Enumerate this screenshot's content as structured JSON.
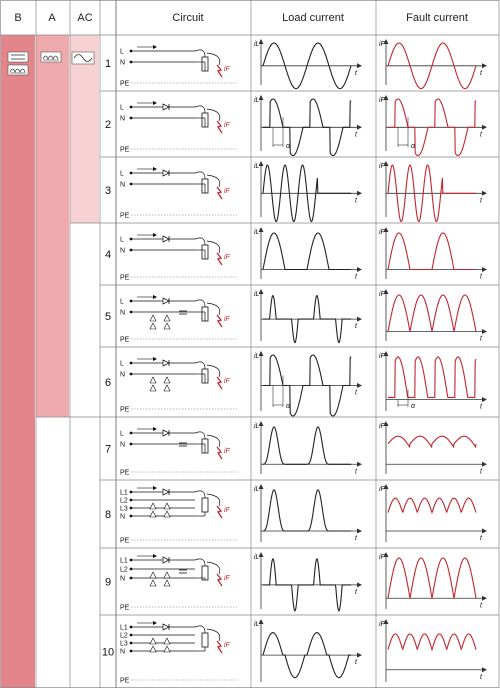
{
  "header": {
    "col_b": "B",
    "col_a": "A",
    "col_ac": "AC",
    "col_circuit": "Circuit",
    "col_load": "Load current",
    "col_fault": "Fault current"
  },
  "axis": {
    "load_y": "iL",
    "fault_y": "iF",
    "x": "t",
    "phase": "α"
  },
  "colors": {
    "type_b": "#e3858b",
    "type_a": "#eeaaad",
    "type_ac": "#f6d2d4",
    "fault_wave": "#c2262e",
    "wave": "#222222",
    "grid": "#888888"
  },
  "icons": {
    "b": [
      "dc-smooth-icon",
      "pulsed-dc-icon"
    ],
    "a": "pulsed-dc-icon",
    "ac": "ac-sine-icon"
  },
  "rows": [
    {
      "num": "1",
      "lines": [
        "L",
        "N",
        "PE"
      ],
      "circuit": "resistive load",
      "load": "sine",
      "fault": "sine"
    },
    {
      "num": "2",
      "lines": [
        "L",
        "N",
        "PE"
      ],
      "circuit": "phase-angle control",
      "load": "phase-cut",
      "fault": "phase-cut",
      "alpha": true
    },
    {
      "num": "3",
      "lines": [
        "L",
        "N",
        "PE"
      ],
      "circuit": "burst-firing control",
      "load": "burst",
      "fault": "burst"
    },
    {
      "num": "4",
      "lines": [
        "L",
        "N",
        "PE"
      ],
      "circuit": "single-phase half-wave rectifier",
      "load": "half-wave",
      "fault": "half-wave"
    },
    {
      "num": "5",
      "lines": [
        "L",
        "N",
        "PE"
      ],
      "circuit": "bridge rectifier",
      "load": "pulses",
      "fault": "full-wave"
    },
    {
      "num": "6",
      "lines": [
        "L",
        "N",
        "PE"
      ],
      "circuit": "phase-controlled bridge",
      "load": "phase-cut",
      "fault": "full-wave-phase",
      "alpha": true
    },
    {
      "num": "7",
      "lines": [
        "L",
        "N",
        "PE"
      ],
      "circuit": "half-wave rectifier with smoothing",
      "load": "half-wave-spaced",
      "fault": "smoothed"
    },
    {
      "num": "8",
      "lines": [
        "L1",
        "L2",
        "L3",
        "N",
        "PE"
      ],
      "circuit": "three-phase star rectifier",
      "load": "half-wave-spaced",
      "fault": "ripple"
    },
    {
      "num": "9",
      "lines": [
        "L1",
        "L2",
        "N",
        "PE"
      ],
      "circuit": "two-phase bridge",
      "load": "pulses",
      "fault": "full-wave"
    },
    {
      "num": "10",
      "lines": [
        "L1",
        "L2",
        "L3",
        "N",
        "PE"
      ],
      "circuit": "three-phase bridge",
      "load": "bipolar-humps",
      "fault": "ripple"
    }
  ]
}
